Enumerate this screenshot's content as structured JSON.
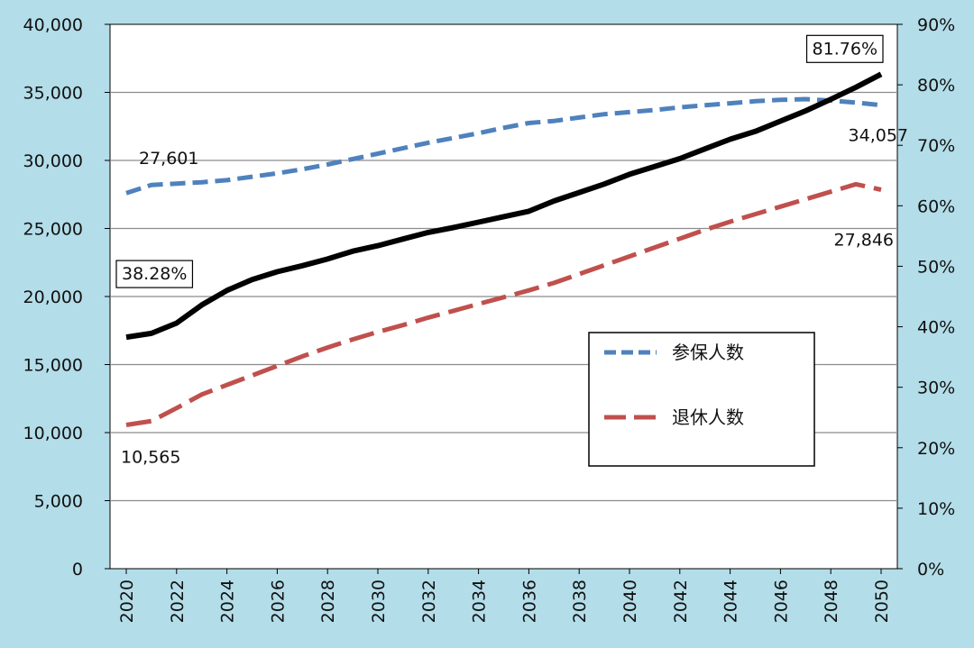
{
  "chart_data": {
    "type": "line",
    "title": "",
    "xlabel": "",
    "ylabel": "",
    "ylim": [
      0,
      40000
    ],
    "y2lim": [
      0,
      0.9
    ],
    "y_ticks": [
      "0",
      "5,000",
      "10,000",
      "15,000",
      "20,000",
      "25,000",
      "30,000",
      "35,000",
      "40,000"
    ],
    "y2_ticks": [
      "0%",
      "10%",
      "20%",
      "30%",
      "40%",
      "50%",
      "60%",
      "70%",
      "80%",
      "90%"
    ],
    "x_ticks": [
      "2020",
      "2022",
      "2024",
      "2026",
      "2028",
      "2030",
      "2032",
      "2034",
      "2036",
      "2038",
      "2040",
      "2042",
      "2044",
      "2046",
      "2048",
      "2050"
    ],
    "x": [
      2020,
      2021,
      2022,
      2023,
      2024,
      2025,
      2026,
      2027,
      2028,
      2029,
      2030,
      2031,
      2032,
      2033,
      2034,
      2035,
      2036,
      2037,
      2038,
      2039,
      2040,
      2041,
      2042,
      2043,
      2044,
      2045,
      2046,
      2047,
      2048,
      2049,
      2050
    ],
    "grid": true,
    "legend_position": "center-right",
    "series": [
      {
        "name": "参保人数",
        "axis": "left",
        "style": "dashed",
        "color": "#4f81bd",
        "values": [
          27601,
          28200,
          28300,
          28400,
          28550,
          28800,
          29050,
          29350,
          29700,
          30100,
          30500,
          30900,
          31300,
          31650,
          32000,
          32400,
          32750,
          32900,
          33150,
          33400,
          33550,
          33700,
          33900,
          34050,
          34200,
          34350,
          34450,
          34500,
          34400,
          34250,
          34057
        ]
      },
      {
        "name": "退休人数",
        "axis": "left",
        "style": "dashed",
        "color": "#c0504d",
        "values": [
          10565,
          10850,
          11800,
          12800,
          13500,
          14200,
          14900,
          15600,
          16250,
          16850,
          17400,
          17900,
          18450,
          18950,
          19450,
          19950,
          20450,
          21000,
          21650,
          22300,
          22950,
          23600,
          24250,
          24900,
          25500,
          26050,
          26600,
          27150,
          27700,
          28250,
          27846
        ]
      },
      {
        "name": "",
        "axis": "right",
        "style": "solid",
        "color": "#000000",
        "values": [
          0.3828,
          0.389,
          0.406,
          0.436,
          0.46,
          0.478,
          0.491,
          0.501,
          0.512,
          0.525,
          0.534,
          0.545,
          0.556,
          0.564,
          0.573,
          0.582,
          0.591,
          0.608,
          0.622,
          0.636,
          0.652,
          0.665,
          0.678,
          0.694,
          0.71,
          0.723,
          0.74,
          0.757,
          0.776,
          0.796,
          0.8176
        ]
      }
    ],
    "annotations": [
      {
        "text": "27,601",
        "series": 0,
        "index": 0,
        "boxed": false
      },
      {
        "text": "34,057",
        "series": 0,
        "index": 30,
        "boxed": false
      },
      {
        "text": "10,565",
        "series": 1,
        "index": 0,
        "boxed": false
      },
      {
        "text": "27,846",
        "series": 1,
        "index": 30,
        "boxed": false
      },
      {
        "text": "38.28%",
        "series": 2,
        "index": 0,
        "boxed": true
      },
      {
        "text": "81.76%",
        "series": 2,
        "index": 30,
        "boxed": true
      }
    ]
  }
}
